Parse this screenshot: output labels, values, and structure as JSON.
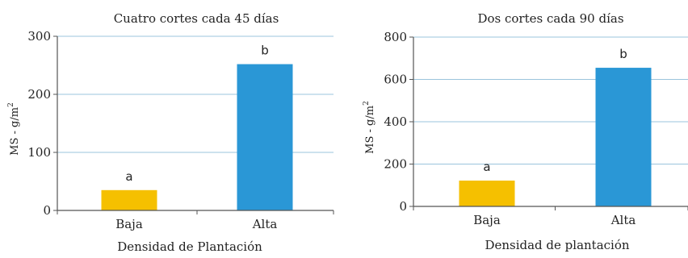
{
  "chart_data": [
    {
      "type": "bar",
      "title": "Cuatro cortes cada 45 días",
      "xlabel": "Densidad de Plantación",
      "ylabel": "MS - g/m",
      "ylabel_sup": "2",
      "categories": [
        "Baja",
        "Alta"
      ],
      "values": [
        35,
        252
      ],
      "significance": [
        "a",
        "b"
      ],
      "colors": [
        "#f5c000",
        "#2a97d6"
      ],
      "ylim": [
        0,
        300
      ],
      "yticks": [
        0,
        100,
        200,
        300
      ],
      "ytick_labels": [
        "0",
        "100",
        "200",
        "300"
      ],
      "grid": true
    },
    {
      "type": "bar",
      "title": "Dos cortes cada 90 días",
      "xlabel": "Densidad de plantación",
      "ylabel": "MS - g/m",
      "ylabel_sup": "2",
      "categories": [
        "Baja",
        "Alta"
      ],
      "values": [
        122,
        655
      ],
      "significance": [
        "a",
        "b"
      ],
      "colors": [
        "#f5c000",
        "#2a97d6"
      ],
      "ylim": [
        0,
        800
      ],
      "yticks": [
        0,
        200,
        400,
        600,
        800
      ],
      "ytick_labels": [
        "0",
        "200",
        "400",
        "600",
        "800"
      ],
      "grid": true
    }
  ]
}
